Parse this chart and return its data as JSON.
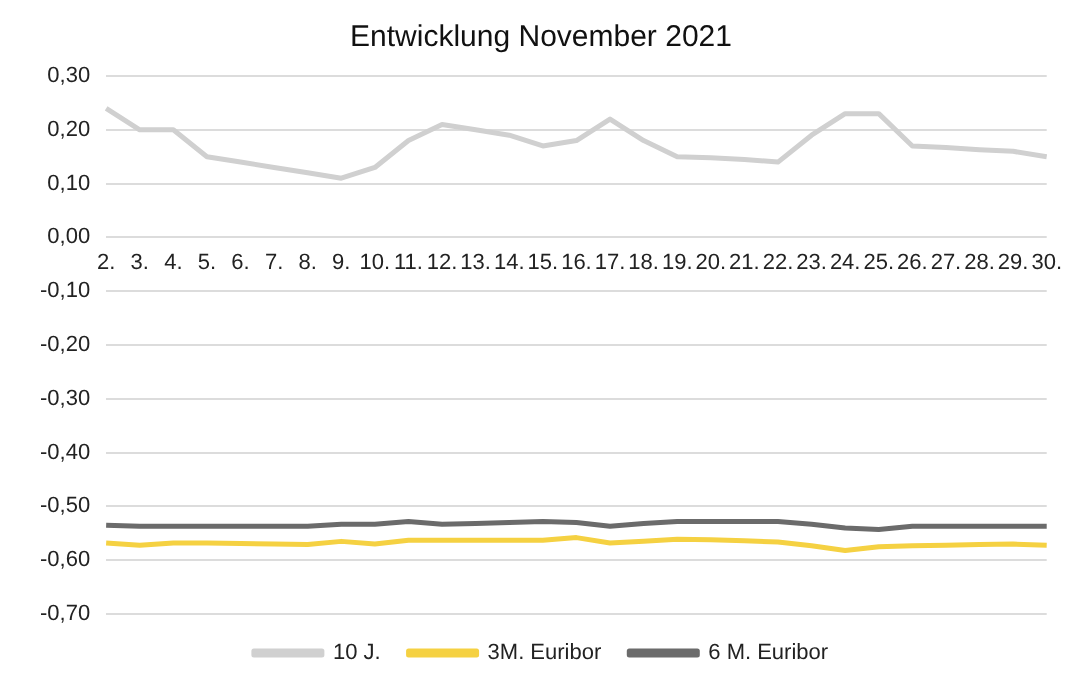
{
  "chart_data": {
    "type": "line",
    "title": "Entwicklung November 2021",
    "categories": [
      "2.",
      "3.",
      "4.",
      "5.",
      "6.",
      "7.",
      "8.",
      "9.",
      "10.",
      "11.",
      "12.",
      "13.",
      "14.",
      "15.",
      "16.",
      "17.",
      "18.",
      "19.",
      "20.",
      "21.",
      "22.",
      "23.",
      "24.",
      "25.",
      "26.",
      "27.",
      "28.",
      "29.",
      "30."
    ],
    "series": [
      {
        "name": "10 J.",
        "color": "#d0d0d0",
        "values": [
          0.24,
          0.2,
          0.2,
          0.15,
          0.14,
          0.13,
          0.12,
          0.11,
          0.13,
          0.18,
          0.21,
          0.2,
          0.19,
          0.17,
          0.18,
          0.22,
          0.18,
          0.15,
          0.148,
          0.145,
          0.14,
          0.19,
          0.23,
          0.23,
          0.17,
          0.167,
          0.163,
          0.16,
          0.15
        ]
      },
      {
        "name": "3M. Euribor",
        "color": "#f5d142",
        "values": [
          -0.568,
          -0.572,
          -0.568,
          -0.568,
          -0.569,
          -0.57,
          -0.571,
          -0.565,
          -0.57,
          -0.563,
          -0.563,
          -0.563,
          -0.563,
          -0.563,
          -0.558,
          -0.568,
          -0.565,
          -0.561,
          -0.562,
          -0.564,
          -0.566,
          -0.573,
          -0.582,
          -0.575,
          -0.573,
          -0.572,
          -0.571,
          -0.57,
          -0.572
        ]
      },
      {
        "name": "6 M. Euribor",
        "color": "#6b6b6b",
        "values": [
          -0.535,
          -0.537,
          -0.537,
          -0.537,
          -0.537,
          -0.537,
          -0.537,
          -0.533,
          -0.533,
          -0.528,
          -0.533,
          -0.532,
          -0.53,
          -0.528,
          -0.53,
          -0.537,
          -0.532,
          -0.528,
          -0.528,
          -0.528,
          -0.528,
          -0.533,
          -0.54,
          -0.543,
          -0.537,
          -0.537,
          -0.537,
          -0.537,
          -0.537
        ]
      }
    ],
    "ylim": [
      -0.7,
      0.3
    ],
    "yticks": [
      {
        "value": -0.7,
        "label": "-0,70"
      },
      {
        "value": -0.6,
        "label": "-0,60"
      },
      {
        "value": -0.5,
        "label": "-0,50"
      },
      {
        "value": -0.4,
        "label": "-0,40"
      },
      {
        "value": -0.3,
        "label": "-0,30"
      },
      {
        "value": -0.2,
        "label": "-0,20"
      },
      {
        "value": -0.1,
        "label": "-0,10"
      },
      {
        "value": 0,
        "label": "0,00"
      },
      {
        "value": 0.1,
        "label": "0,10"
      },
      {
        "value": 0.2,
        "label": "0,20"
      },
      {
        "value": 0.3,
        "label": "0,30"
      }
    ],
    "grid": "y",
    "legend": "bottom",
    "marker": "none",
    "line_style": "solid"
  }
}
